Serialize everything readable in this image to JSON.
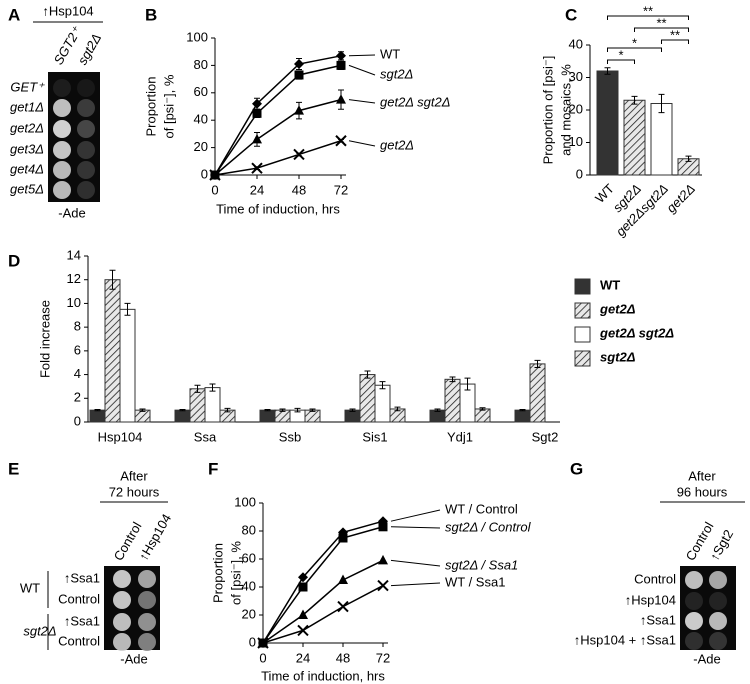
{
  "chart_data": [
    {
      "type": "line",
      "panel_label": "B",
      "ylabel": [
        "Proportion",
        "of [psi⁻], %"
      ],
      "xlabel": "Time of induction, hrs",
      "x": [
        0,
        24,
        48,
        72
      ],
      "xlim": [
        0,
        72
      ],
      "xticks": [
        0,
        24,
        48,
        72
      ],
      "ylim": [
        0,
        100
      ],
      "yticks": [
        0,
        20,
        40,
        60,
        80,
        100
      ],
      "series": [
        {
          "name": "WT",
          "color": "#000000",
          "marker": "diamond",
          "values": [
            0,
            52,
            81,
            87
          ],
          "errors": [
            0,
            4,
            4,
            3
          ]
        },
        {
          "name": "sgt2Δ",
          "color": "#000000",
          "marker": "square",
          "values": [
            0,
            45,
            73,
            80
          ],
          "errors": [
            0,
            3,
            3,
            3
          ]
        },
        {
          "name": "get2Δ sgt2Δ",
          "color": "#000000",
          "marker": "triangle",
          "values": [
            0,
            26,
            47,
            55
          ],
          "errors": [
            0,
            5,
            6,
            7
          ]
        },
        {
          "name": "get2Δ",
          "color": "#000000",
          "marker": "x",
          "values": [
            0,
            5,
            15,
            25
          ],
          "errors": [
            0,
            1,
            1,
            1
          ]
        }
      ]
    },
    {
      "type": "bar",
      "panel_label": "C",
      "ylabel": [
        "Proportion of [psi⁻]",
        "and mosaics, %"
      ],
      "categories": [
        "WT",
        "sgt2Δ",
        "get2Δsgt2Δ",
        "get2Δ"
      ],
      "values": [
        32,
        23,
        22,
        5
      ],
      "errors": [
        1,
        1.2,
        2.8,
        0.8
      ],
      "colors": [
        "#333333",
        "#ffffff",
        "#ffffff",
        "#ffffff"
      ],
      "hatched": [
        false,
        true,
        false,
        true
      ],
      "ylim": [
        0,
        40
      ],
      "yticks": [
        0,
        10,
        20,
        30,
        40
      ],
      "significance": [
        "*",
        "*",
        "**",
        "**",
        "**"
      ]
    },
    {
      "type": "bar",
      "panel_label": "D",
      "ylabel": "Fold increase",
      "legend": "right",
      "categories": [
        "Hsp104",
        "Ssa",
        "Ssb",
        "Sis1",
        "Ydj1",
        "Sgt2"
      ],
      "ylim": [
        0,
        14
      ],
      "yticks": [
        0,
        2,
        4,
        6,
        8,
        10,
        12,
        14
      ],
      "series": [
        {
          "name": "WT",
          "color": "#333333",
          "hatched": false,
          "values": [
            1,
            1,
            1,
            1,
            1,
            1
          ],
          "errors": [
            0.05,
            0.05,
            0.05,
            0.1,
            0.1,
            0.05
          ]
        },
        {
          "name": "get2Δ",
          "color": "#ffffff",
          "hatched": true,
          "values": [
            12,
            2.8,
            1,
            4,
            3.6,
            4.9
          ],
          "errors": [
            0.8,
            0.3,
            0.1,
            0.3,
            0.2,
            0.3
          ]
        },
        {
          "name": "get2Δ sgt2Δ",
          "color": "#ffffff",
          "hatched": false,
          "values": [
            9.5,
            2.9,
            1,
            3.1,
            3.2,
            null
          ],
          "errors": [
            0.5,
            0.3,
            0.15,
            0.3,
            0.5,
            null
          ]
        },
        {
          "name": "sgt2Δ",
          "color": "#ffffff",
          "hatched": true,
          "values": [
            1,
            1,
            1,
            1.1,
            1.1,
            null
          ],
          "errors": [
            0.1,
            0.15,
            0.1,
            0.15,
            0.1,
            null
          ]
        }
      ]
    },
    {
      "type": "line",
      "panel_label": "F",
      "ylabel": [
        "Proportion",
        "of [psi⁻], %"
      ],
      "xlabel": "Time of induction, hrs",
      "x": [
        0,
        24,
        48,
        72
      ],
      "xlim": [
        0,
        72
      ],
      "xticks": [
        0,
        24,
        48,
        72
      ],
      "ylim": [
        0,
        100
      ],
      "yticks": [
        0,
        20,
        40,
        60,
        80,
        100
      ],
      "series": [
        {
          "name": "WT / Control",
          "color": "#000000",
          "marker": "diamond",
          "values": [
            0,
            47,
            79,
            87
          ]
        },
        {
          "name": "sgt2Δ / Control",
          "color": "#000000",
          "marker": "square",
          "values": [
            0,
            40,
            75,
            83
          ]
        },
        {
          "name": "sgt2Δ / Ssa1",
          "color": "#000000",
          "marker": "triangle",
          "values": [
            0,
            20,
            45,
            59
          ]
        },
        {
          "name": "WT / Ssa1",
          "color": "#000000",
          "marker": "x",
          "values": [
            0,
            9,
            26,
            41
          ]
        }
      ]
    }
  ],
  "spot_panels": [
    {
      "label": "A",
      "header": [
        "↑Hsp104"
      ],
      "columns": [
        "SGT2⁺",
        "sgt2Δ"
      ],
      "rows": [
        "GET⁺",
        "get1Δ",
        "get2Δ",
        "get3Δ",
        "get4Δ",
        "get5Δ"
      ],
      "footer": "-Ade"
    },
    {
      "label": "E",
      "header": [
        "After",
        "72 hours"
      ],
      "columns": [
        "Control",
        "↑Hsp104"
      ],
      "groups": [
        "WT",
        "sgt2Δ"
      ],
      "rows": [
        "↑Ssa1",
        "Control",
        "↑Ssa1",
        "Control"
      ],
      "footer": "-Ade"
    },
    {
      "label": "G",
      "header": [
        "After",
        "96 hours"
      ],
      "columns": [
        "Control",
        "↑Sgt2"
      ],
      "rows": [
        "Control",
        "↑Hsp104",
        "↑Ssa1",
        "↑Hsp104 + ↑Ssa1"
      ],
      "footer": "-Ade"
    }
  ]
}
